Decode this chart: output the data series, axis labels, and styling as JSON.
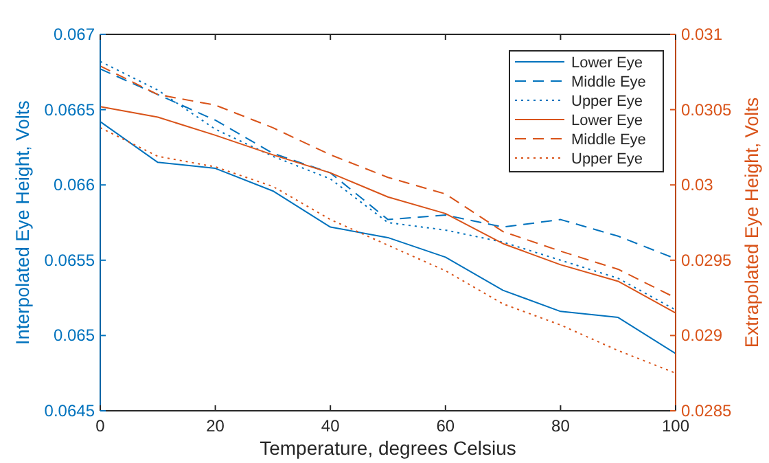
{
  "chart_data": {
    "type": "line",
    "xlabel": "Temperature, degrees Celsius",
    "ylabel": "Interpolated Eye Height, Volts",
    "y2label": "Extrapolated Eye Height, Volts",
    "x": [
      0,
      10,
      20,
      30,
      40,
      50,
      60,
      70,
      80,
      90,
      100
    ],
    "xlim": [
      0,
      100
    ],
    "xticks": [
      0,
      20,
      40,
      60,
      80,
      100
    ],
    "ylim": [
      0.0645,
      0.067
    ],
    "yticks": [
      0.0645,
      0.065,
      0.0655,
      0.066,
      0.0665,
      0.067
    ],
    "y2lim": [
      0.0285,
      0.031
    ],
    "y2ticks": [
      0.0285,
      0.029,
      0.0295,
      0.03,
      0.0305,
      0.031
    ],
    "grid": false,
    "legend": "top right",
    "marker": "none",
    "series": [
      {
        "name": "Lower Eye",
        "color": "#0072bd",
        "line_style": "solid",
        "values": [
          0.06642,
          0.06615,
          0.06611,
          0.06596,
          0.06572,
          0.06565,
          0.06552,
          0.0653,
          0.06516,
          0.06512,
          0.06488
        ]
      },
      {
        "name": "Middle Eye",
        "color": "#0072bd",
        "line_style": "dashed",
        "values": [
          0.06677,
          0.0666,
          0.06643,
          0.06621,
          0.06608,
          0.06577,
          0.0658,
          0.06572,
          0.06577,
          0.06566,
          0.06551
        ]
      },
      {
        "name": "Upper Eye",
        "color": "#0072bd",
        "line_style": "dotted",
        "values": [
          0.06682,
          0.06663,
          0.06637,
          0.06619,
          0.06604,
          0.06575,
          0.0657,
          0.06562,
          0.0655,
          0.06538,
          0.06517
        ]
      },
      {
        "name": "Lower Eye",
        "color": "#d95319",
        "line_style": "solid",
        "axis": "y2",
        "values": [
          0.03052,
          0.03045,
          0.03033,
          0.0302,
          0.03008,
          0.02992,
          0.02981,
          0.02961,
          0.02947,
          0.02936,
          0.02915
        ]
      },
      {
        "name": "Middle Eye",
        "color": "#d95319",
        "line_style": "dashed",
        "axis": "y2",
        "values": [
          0.03079,
          0.0306,
          0.03053,
          0.03038,
          0.0302,
          0.03005,
          0.02994,
          0.02969,
          0.02956,
          0.02944,
          0.02925
        ]
      },
      {
        "name": "Upper Eye",
        "color": "#d95319",
        "line_style": "dotted",
        "axis": "y2",
        "values": [
          0.03038,
          0.03019,
          0.03012,
          0.02999,
          0.02977,
          0.0296,
          0.02943,
          0.02921,
          0.02907,
          0.0289,
          0.02875
        ]
      }
    ]
  }
}
